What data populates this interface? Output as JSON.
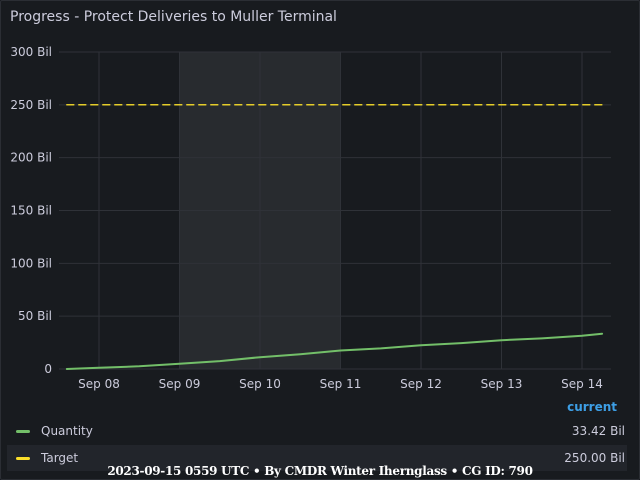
{
  "panel": {
    "title": "Progress - Protect Deliveries to Muller Terminal"
  },
  "colors": {
    "quantity": "#73bf69",
    "target": "#fade2a",
    "accent": "#3d9fe6",
    "highlight_region": "#2c2e33"
  },
  "chart_data": {
    "type": "line",
    "x_ticks": [
      "Sep 08",
      "Sep 09",
      "Sep 10",
      "Sep 11",
      "Sep 12",
      "Sep 13",
      "Sep 14"
    ],
    "y_ticks": [
      "0",
      "50 Bil",
      "100 Bil",
      "150 Bil",
      "200 Bil",
      "250 Bil",
      "300 Bil"
    ],
    "y_tick_values": [
      0,
      50,
      100,
      150,
      200,
      250,
      300
    ],
    "ylim": [
      0,
      300
    ],
    "xlim": [
      7.6,
      14.3
    ],
    "grid": true,
    "highlight_range": [
      9.0,
      11.0
    ],
    "series": [
      {
        "name": "Quantity",
        "style": "solid",
        "x": [
          7.6,
          8.0,
          8.5,
          9.0,
          9.5,
          10.0,
          10.5,
          11.0,
          11.5,
          12.0,
          12.5,
          13.0,
          13.5,
          14.0,
          14.25
        ],
        "y": [
          0,
          1.2,
          2.6,
          5.0,
          7.5,
          11.2,
          14.0,
          17.5,
          19.5,
          22.5,
          24.5,
          27.3,
          29.0,
          31.4,
          33.42
        ]
      },
      {
        "name": "Target",
        "style": "dashed",
        "x": [
          7.6,
          14.25
        ],
        "y": [
          250,
          250
        ]
      }
    ]
  },
  "legend": {
    "header": "current",
    "items": [
      {
        "name": "Quantity",
        "value": "33.42 Bil",
        "color": "#73bf69"
      },
      {
        "name": "Target",
        "value": "250.00 Bil",
        "color": "#fade2a"
      }
    ]
  },
  "footer": {
    "text": "2023-09-15 0559 UTC • By CMDR Winter Iherngla ss • CG ID: 790"
  }
}
